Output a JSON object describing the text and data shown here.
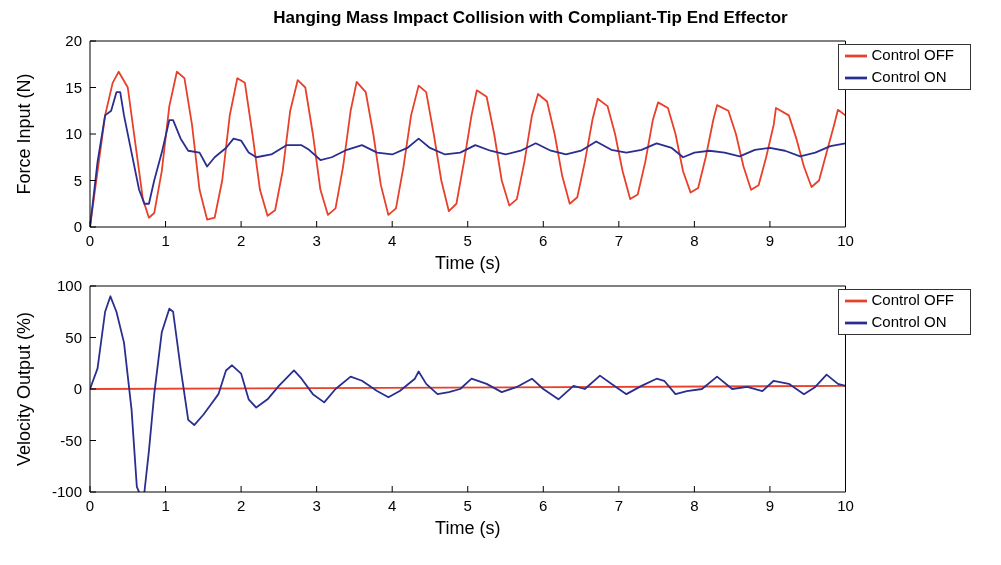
{
  "chart_data": [
    {
      "type": "line",
      "title": "Hanging Mass Impact Collision with Compliant-Tip End Effector",
      "xlabel": "Time (s)",
      "ylabel": "Force Input (N)",
      "xlim": [
        0,
        10
      ],
      "ylim": [
        0,
        20
      ],
      "xticks": [
        0,
        1,
        2,
        3,
        4,
        5,
        6,
        7,
        8,
        9,
        10
      ],
      "yticks": [
        0,
        5,
        10,
        15,
        20
      ],
      "legend": "top right",
      "marker": "none",
      "line_style": "solid",
      "series": [
        {
          "name": "Control OFF",
          "color": "#e8402a",
          "x": [
            0,
            0.1,
            0.2,
            0.3,
            0.38,
            0.5,
            0.6,
            0.7,
            0.78,
            0.85,
            0.95,
            1.05,
            1.15,
            1.25,
            1.35,
            1.45,
            1.55,
            1.65,
            1.75,
            1.85,
            1.95,
            2.05,
            2.15,
            2.25,
            2.35,
            2.45,
            2.55,
            2.65,
            2.75,
            2.85,
            2.95,
            3.05,
            3.15,
            3.25,
            3.35,
            3.45,
            3.53,
            3.65,
            3.75,
            3.85,
            3.95,
            4.05,
            4.15,
            4.25,
            4.35,
            4.45,
            4.55,
            4.65,
            4.75,
            4.85,
            4.95,
            5.05,
            5.12,
            5.25,
            5.35,
            5.45,
            5.55,
            5.65,
            5.75,
            5.85,
            5.93,
            6.05,
            6.15,
            6.25,
            6.35,
            6.45,
            6.55,
            6.65,
            6.72,
            6.85,
            6.95,
            7.05,
            7.15,
            7.25,
            7.35,
            7.45,
            7.52,
            7.65,
            7.75,
            7.85,
            7.95,
            8.05,
            8.15,
            8.25,
            8.3,
            8.45,
            8.55,
            8.65,
            8.75,
            8.85,
            8.95,
            9.05,
            9.08,
            9.25,
            9.35,
            9.45,
            9.55,
            9.65,
            9.75,
            9.85,
            9.9,
            10
          ],
          "values": [
            0,
            6,
            12,
            15.5,
            16.7,
            15,
            9,
            3,
            1,
            1.5,
            6,
            13,
            16.7,
            16,
            11,
            4,
            0.8,
            1,
            5,
            12,
            16,
            15.5,
            10,
            4,
            1.2,
            1.8,
            6,
            12.5,
            15.8,
            15,
            10,
            4,
            1.3,
            2,
            6.5,
            12.5,
            15.6,
            14.5,
            10,
            4.5,
            1.3,
            2,
            6.5,
            12,
            15.2,
            14.5,
            10,
            5,
            1.7,
            2.5,
            7,
            12,
            14.7,
            14,
            10,
            5,
            2.3,
            3,
            7,
            12,
            14.3,
            13.5,
            10,
            5.5,
            2.5,
            3.2,
            7,
            11.5,
            13.8,
            13,
            10,
            6,
            3,
            3.5,
            7,
            11.5,
            13.4,
            12.8,
            10,
            6,
            3.7,
            4.2,
            7.5,
            11.5,
            13.1,
            12.5,
            10,
            6.5,
            4,
            4.5,
            7.5,
            11,
            12.8,
            12,
            9.5,
            6.5,
            4.3,
            5,
            8,
            11,
            12.6,
            12
          ]
        },
        {
          "name": "Control ON",
          "color": "#2a2f8f",
          "x": [
            0,
            0.1,
            0.2,
            0.28,
            0.35,
            0.4,
            0.45,
            0.55,
            0.65,
            0.72,
            0.78,
            0.85,
            0.95,
            1.05,
            1.1,
            1.2,
            1.3,
            1.45,
            1.55,
            1.65,
            1.8,
            1.9,
            2.0,
            2.1,
            2.2,
            2.4,
            2.6,
            2.8,
            2.9,
            3.05,
            3.2,
            3.4,
            3.6,
            3.8,
            4.0,
            4.2,
            4.35,
            4.5,
            4.7,
            4.9,
            5.1,
            5.3,
            5.5,
            5.7,
            5.9,
            6.1,
            6.3,
            6.5,
            6.7,
            6.9,
            7.1,
            7.3,
            7.5,
            7.7,
            7.85,
            8.0,
            8.2,
            8.4,
            8.6,
            8.8,
            9.0,
            9.2,
            9.4,
            9.6,
            9.8,
            10
          ],
          "values": [
            0,
            7,
            12,
            12.5,
            14.5,
            14.5,
            12,
            8,
            4,
            2.5,
            2.5,
            5,
            8,
            11.5,
            11.5,
            9.5,
            8.2,
            8,
            6.5,
            7.5,
            8.5,
            9.5,
            9.3,
            8,
            7.5,
            7.8,
            8.8,
            8.8,
            8.3,
            7.2,
            7.5,
            8.3,
            8.8,
            8,
            7.8,
            8.5,
            9.5,
            8.5,
            7.8,
            8,
            8.8,
            8.2,
            7.8,
            8.2,
            9,
            8.2,
            7.8,
            8.2,
            9.2,
            8.3,
            8,
            8.3,
            9,
            8.5,
            7.5,
            8,
            8.2,
            8,
            7.6,
            8.3,
            8.5,
            8.2,
            7.6,
            8,
            8.7,
            9
          ]
        }
      ]
    },
    {
      "type": "line",
      "xlabel": "Time (s)",
      "ylabel": "Velocity Output (%)",
      "xlim": [
        0,
        10
      ],
      "ylim": [
        -100,
        100
      ],
      "xticks": [
        0,
        1,
        2,
        3,
        4,
        5,
        6,
        7,
        8,
        9,
        10
      ],
      "yticks": [
        -100,
        -50,
        0,
        50,
        100
      ],
      "legend": "top right",
      "marker": "none",
      "line_style": "solid",
      "series": [
        {
          "name": "Control OFF",
          "color": "#e8402a",
          "x": [
            0,
            10
          ],
          "values": [
            0,
            3
          ]
        },
        {
          "name": "Control ON",
          "color": "#2a2f8f",
          "x": [
            0,
            0.1,
            0.2,
            0.27,
            0.35,
            0.45,
            0.55,
            0.62,
            0.65,
            0.68,
            0.72,
            0.78,
            0.85,
            0.95,
            1.05,
            1.1,
            1.2,
            1.3,
            1.38,
            1.5,
            1.6,
            1.7,
            1.8,
            1.88,
            2.0,
            2.1,
            2.2,
            2.35,
            2.5,
            2.7,
            2.8,
            2.95,
            3.1,
            3.25,
            3.45,
            3.6,
            3.8,
            3.95,
            4.1,
            4.3,
            4.35,
            4.45,
            4.6,
            4.75,
            4.9,
            5.05,
            5.25,
            5.45,
            5.65,
            5.85,
            6.0,
            6.2,
            6.4,
            6.55,
            6.75,
            6.9,
            7.1,
            7.3,
            7.5,
            7.6,
            7.75,
            7.9,
            8.1,
            8.3,
            8.5,
            8.7,
            8.9,
            9.05,
            9.25,
            9.45,
            9.6,
            9.75,
            9.9,
            10
          ],
          "values": [
            0,
            20,
            75,
            90,
            75,
            45,
            -20,
            -95,
            -100,
            null,
            -100,
            -60,
            -5,
            55,
            78,
            75,
            20,
            -30,
            -35,
            -25,
            -15,
            -5,
            18,
            23,
            15,
            -10,
            -18,
            -10,
            3,
            18,
            10,
            -5,
            -13,
            0,
            12,
            8,
            -2,
            -8,
            -2,
            10,
            17,
            5,
            -5,
            -3,
            0,
            10,
            5,
            -3,
            2,
            10,
            0,
            -10,
            3,
            0,
            13,
            5,
            -5,
            3,
            10,
            8,
            -5,
            -2,
            0,
            12,
            0,
            2,
            -2,
            8,
            5,
            -5,
            2,
            14,
            5,
            3
          ]
        }
      ]
    }
  ]
}
